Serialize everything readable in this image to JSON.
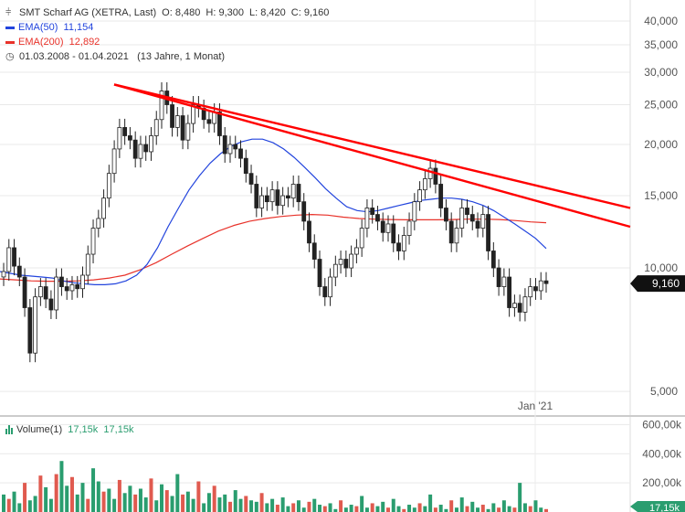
{
  "header": {
    "title": "SMT Scharf AG (XETRA, Last)",
    "ohlc": [
      {
        "label": "O:",
        "value": "8,480"
      },
      {
        "label": "H:",
        "value": "9,300"
      },
      {
        "label": "L:",
        "value": "8,420"
      },
      {
        "label": "C:",
        "value": "9,160"
      }
    ],
    "ema50": {
      "label": "EMA(50)",
      "value": "11,154",
      "color": "#2244dd"
    },
    "ema200": {
      "label": "EMA(200)",
      "value": "12,892",
      "color": "#e8322a"
    },
    "range": "01.03.2008 - 01.04.2021",
    "range_desc": "(13 Jahre, 1 Monat)",
    "icons": {
      "chart": "candlestick-icon",
      "time": "clock-icon"
    }
  },
  "colors": {
    "up": "#2a9d6f",
    "down": "#e05a4f",
    "trend": "#ff0000",
    "grid": "#e9e9e9"
  },
  "chart_data": {
    "type": "candlestick",
    "scale": "log",
    "y_ticks": [
      "40,000",
      "35,000",
      "30,000",
      "25,000",
      "20,000",
      "15,000",
      "10,000",
      "5,000"
    ],
    "y_tick_values": [
      40,
      35,
      30,
      25,
      20,
      15,
      10,
      5
    ],
    "x_tick_label": "Jan '21",
    "last_price_label": "9,160",
    "close_series": [
      9.8,
      11.2,
      10.1,
      9.5,
      8.0,
      6.2,
      8.5,
      9.0,
      8.4,
      7.9,
      9.5,
      9.0,
      8.8,
      9.1,
      8.9,
      9.6,
      10.8,
      12.5,
      13.2,
      14.8,
      17.0,
      19.5,
      22.0,
      21.0,
      20.5,
      18.5,
      20.0,
      19.2,
      21.0,
      23.0,
      27.0,
      25.0,
      22.0,
      23.5,
      20.5,
      22.5,
      25.0,
      24.5,
      23.0,
      22.5,
      24.0,
      21.0,
      19.0,
      20.0,
      19.5,
      18.5,
      17.0,
      16.0,
      14.0,
      15.0,
      14.5,
      15.5,
      14.2,
      15.0,
      14.8,
      16.0,
      14.5,
      13.0,
      11.5,
      10.5,
      9.0,
      8.5,
      9.5,
      10.2,
      10.5,
      10.0,
      10.8,
      11.2,
      12.5,
      14.0,
      13.5,
      13.0,
      12.2,
      12.8,
      11.5,
      11.0,
      12.0,
      13.0,
      14.5,
      15.5,
      16.5,
      17.5,
      16.0,
      14.0,
      13.0,
      11.5,
      12.5,
      14.0,
      13.5,
      13.0,
      12.5,
      13.5,
      11.0,
      10.0,
      9.0,
      9.5,
      8.0,
      8.2,
      7.8,
      8.5,
      9.0,
      8.8,
      9.3,
      9.16
    ],
    "ema50": [
      9.8,
      9.7,
      9.6,
      9.55,
      9.5,
      9.45,
      9.3,
      9.2,
      9.15,
      9.1,
      9.1,
      9.15,
      9.3,
      9.6,
      10.2,
      11.2,
      12.6,
      14.0,
      15.5,
      16.8,
      18.0,
      19.0,
      19.8,
      20.3,
      20.6,
      20.6,
      20.2,
      19.5,
      18.6,
      17.6,
      16.6,
      15.6,
      14.8,
      14.1,
      13.8,
      13.7,
      13.8,
      14.0,
      14.2,
      14.4,
      14.6,
      14.7,
      14.8,
      14.8,
      14.7,
      14.5,
      14.2,
      13.8,
      13.3,
      12.8,
      12.3,
      11.8,
      11.154
    ],
    "ema200": [
      9.4,
      9.35,
      9.3,
      9.28,
      9.28,
      9.3,
      9.35,
      9.45,
      9.6,
      9.9,
      10.3,
      10.8,
      11.3,
      11.8,
      12.3,
      12.7,
      13.0,
      13.2,
      13.35,
      13.45,
      13.5,
      13.45,
      13.3,
      13.2,
      13.15,
      13.12,
      13.1,
      13.1,
      13.1,
      13.12,
      13.15,
      13.15,
      13.12,
      13.05,
      12.95,
      12.892
    ],
    "trendlines": [
      {
        "from": [
          0.18,
          28.0
        ],
        "to": [
          1.0,
          14.0
        ]
      },
      {
        "from": [
          0.18,
          28.0
        ],
        "to": [
          1.0,
          12.6
        ]
      }
    ]
  },
  "volume": {
    "label": "Volume(1)",
    "value1": "17,15k",
    "value2": "17,15k",
    "y_ticks": [
      "600,00k",
      "400,00k",
      "200,00k"
    ],
    "y_tick_values": [
      600,
      400,
      200
    ],
    "last_label": "17,15k",
    "values": [
      120,
      90,
      140,
      60,
      200,
      80,
      110,
      250,
      170,
      90,
      260,
      350,
      180,
      240,
      120,
      200,
      90,
      300,
      210,
      140,
      160,
      90,
      220,
      130,
      180,
      120,
      160,
      100,
      230,
      80,
      190,
      150,
      110,
      260,
      120,
      140,
      90,
      210,
      60,
      130,
      180,
      100,
      120,
      70,
      150,
      90,
      110,
      80,
      70,
      130,
      60,
      90,
      50,
      100,
      40,
      60,
      80,
      30,
      70,
      90,
      50,
      40,
      60,
      20,
      80,
      30,
      50,
      40,
      110,
      30,
      60,
      40,
      70,
      30,
      90,
      40,
      20,
      50,
      30,
      60,
      40,
      120,
      30,
      50,
      20,
      80,
      30,
      100,
      40,
      70,
      30,
      50,
      20,
      60,
      30,
      80,
      40,
      30,
      200,
      60,
      40,
      80,
      30,
      20
    ]
  }
}
